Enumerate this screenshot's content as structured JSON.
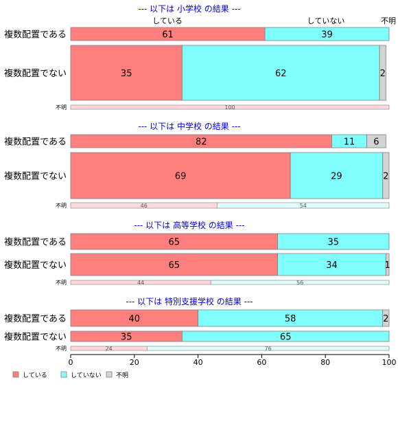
{
  "chart_data": {
    "type": "bar",
    "orientation": "horizontal",
    "stacked": true,
    "x_range": [
      0,
      100
    ],
    "x_ticks": [
      "0",
      "20",
      "40",
      "60",
      "80",
      "100"
    ],
    "column_labels": {
      "doing": "している",
      "not_doing": "していない",
      "unknown": "不明"
    },
    "series": [
      {
        "name": "している",
        "color": "#ff7f7f"
      },
      {
        "name": "していない",
        "color": "#80ffff"
      },
      {
        "name": "不明",
        "color": "#d3d3d3"
      }
    ],
    "minor_colors": [
      "#ffd9dc",
      "#e0ffff",
      "#f0f0f0"
    ],
    "legend_position": "bottom-left",
    "panels": [
      {
        "title": "--- 以下は 小学校 の結果 ---",
        "rows": [
          {
            "label": "複数配置である",
            "values": [
              61,
              39,
              0
            ],
            "labels": [
              "61",
              "39",
              ""
            ]
          },
          {
            "label": "複数配置でない",
            "values": [
              35,
              62,
              2
            ],
            "labels": [
              "35",
              "62",
              "2"
            ]
          },
          {
            "label": "不明",
            "values": [
              100,
              0,
              0
            ],
            "labels": [
              "100",
              "",
              ""
            ],
            "minor": true
          }
        ]
      },
      {
        "title": "--- 以下は 中学校 の結果 ---",
        "rows": [
          {
            "label": "複数配置である",
            "values": [
              82,
              11,
              6
            ],
            "labels": [
              "82",
              "11",
              "6"
            ]
          },
          {
            "label": "複数配置でない",
            "values": [
              69,
              29,
              2
            ],
            "labels": [
              "69",
              "29",
              "2"
            ]
          },
          {
            "label": "不明",
            "values": [
              46,
              54,
              0
            ],
            "labels": [
              "46",
              "54",
              ""
            ],
            "minor": true
          }
        ]
      },
      {
        "title": "--- 以下は 高等学校 の結果 ---",
        "rows": [
          {
            "label": "複数配置である",
            "values": [
              65,
              35,
              0
            ],
            "labels": [
              "65",
              "35",
              ""
            ]
          },
          {
            "label": "複数配置でない",
            "values": [
              65,
              34,
              1
            ],
            "labels": [
              "65",
              "34",
              "1"
            ]
          },
          {
            "label": "不明",
            "values": [
              44,
              56,
              0
            ],
            "labels": [
              "44",
              "56",
              ""
            ],
            "minor": true
          }
        ]
      },
      {
        "title": "--- 以下は 特別支援学校 の結果 ---",
        "rows": [
          {
            "label": "複数配置である",
            "values": [
              40,
              58,
              2
            ],
            "labels": [
              "40",
              "58",
              "2"
            ]
          },
          {
            "label": "複数配置でない",
            "values": [
              35,
              65,
              0
            ],
            "labels": [
              "35",
              "65",
              ""
            ]
          },
          {
            "label": "不明",
            "values": [
              24,
              76,
              0
            ],
            "labels": [
              "24",
              "76",
              ""
            ],
            "minor": true
          }
        ]
      }
    ]
  }
}
